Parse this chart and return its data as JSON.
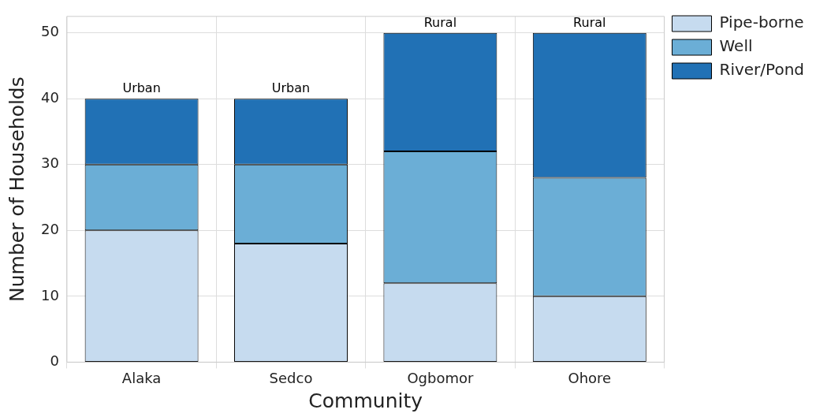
{
  "chart_data": {
    "type": "bar",
    "stacked": true,
    "xlabel": "Community",
    "ylabel": "Number of Households",
    "categories": [
      "Alaka",
      "Sedco",
      "Ogbomor",
      "Ohore"
    ],
    "series": [
      {
        "name": "Pipe-borne",
        "color": "#c6dbef",
        "values": [
          20,
          18,
          12,
          10
        ]
      },
      {
        "name": "Well",
        "color": "#6baed6",
        "values": [
          10,
          12,
          20,
          18
        ]
      },
      {
        "name": "River/Pond",
        "color": "#2171b5",
        "values": [
          10,
          10,
          18,
          22
        ]
      }
    ],
    "ylim": [
      0,
      52.5
    ],
    "yticks": [
      0,
      10,
      20,
      30,
      40,
      50
    ],
    "grid": true,
    "legend": "top right",
    "annotations": [
      {
        "text": "Urban",
        "x": "Alaka",
        "y": 40
      },
      {
        "text": "Urban",
        "x": "Sedco",
        "y": 40
      },
      {
        "text": "Rural",
        "x": "Ogbomor",
        "y": 50
      },
      {
        "text": "Rural",
        "x": "Ohore",
        "y": 50
      }
    ]
  }
}
